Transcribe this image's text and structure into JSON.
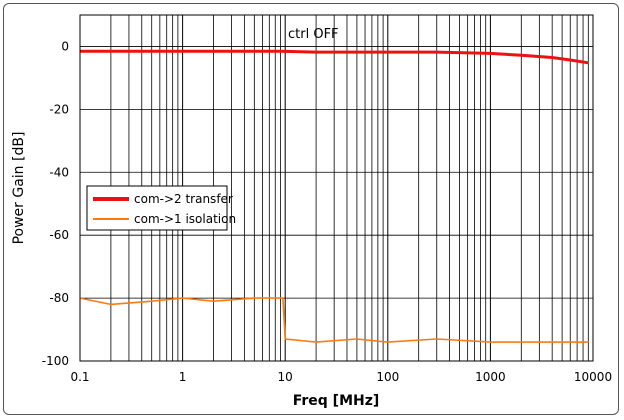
{
  "chart_data": {
    "type": "line",
    "title": "",
    "annotation": "ctrl OFF",
    "xlabel": "Freq [MHz]",
    "ylabel": "Power Gain [dB]",
    "x_scale": "log",
    "xlim": [
      0.1,
      10000
    ],
    "ylim": [
      -100,
      10
    ],
    "x_tick_labels": [
      "0.1",
      "1",
      "10",
      "100",
      "1000",
      "10000"
    ],
    "y_tick_values": [
      0,
      -20,
      -40,
      -60,
      -80,
      -100
    ],
    "y_tick_labels": [
      "0",
      "-20",
      "-40",
      "-60",
      "-80",
      "-100"
    ],
    "grid": true,
    "legend_placement": "middle-left",
    "series": [
      {
        "name": "com->2 transfer",
        "color": "#ee1111",
        "x": [
          0.1,
          0.3,
          1,
          3,
          9,
          20,
          50,
          100,
          300,
          1000,
          2000,
          4000,
          6000,
          9000
        ],
        "y": [
          -1.5,
          -1.5,
          -1.5,
          -1.5,
          -1.5,
          -1.8,
          -1.8,
          -1.8,
          -1.8,
          -2.2,
          -2.8,
          -3.5,
          -4.3,
          -5.2
        ]
      },
      {
        "name": "com->1 isolation",
        "color": "#ff7a10",
        "x": [
          0.1,
          0.2,
          0.5,
          1,
          2,
          5,
          9.5,
          10,
          20,
          50,
          100,
          300,
          1000,
          3000,
          9000
        ],
        "y": [
          -80,
          -82,
          -81,
          -80,
          -81,
          -80,
          -80,
          -93,
          -94,
          -93,
          -94,
          -93,
          -94,
          -94,
          -94
        ]
      }
    ]
  }
}
